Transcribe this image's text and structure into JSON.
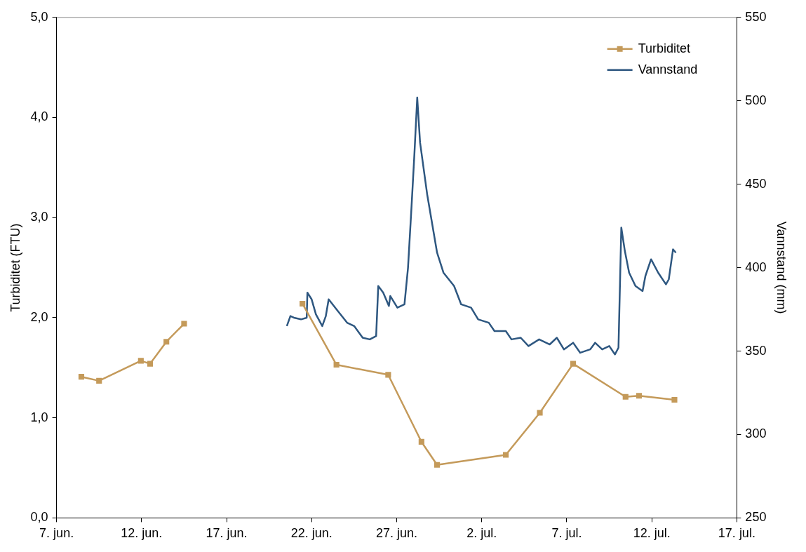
{
  "chart_data": {
    "type": "line",
    "ylabel": "Turbiditet (FTU)",
    "y2label": "Vannstand (mm)",
    "legend": "top right",
    "line_style": "solid",
    "xlim": [
      "--06-07",
      "--07-17"
    ],
    "xticks": [
      {
        "value": "--06-07",
        "label": "7. jun."
      },
      {
        "value": "--06-12",
        "label": "12. jun."
      },
      {
        "value": "--06-17",
        "label": "17. jun."
      },
      {
        "value": "--06-22",
        "label": "22. jun."
      },
      {
        "value": "--06-27",
        "label": "27. jun."
      },
      {
        "value": "--07-02",
        "label": "2. jul."
      },
      {
        "value": "--07-07",
        "label": "7. jul."
      },
      {
        "value": "--07-12",
        "label": "12. jul."
      },
      {
        "value": "--07-17",
        "label": "17. jul."
      }
    ],
    "ylim": [
      0,
      5
    ],
    "yticks": [
      {
        "value": 0,
        "label": "0,0"
      },
      {
        "value": 1,
        "label": "1,0"
      },
      {
        "value": 2,
        "label": "2,0"
      },
      {
        "value": 3,
        "label": "3,0"
      },
      {
        "value": 4,
        "label": "4,0"
      },
      {
        "value": 5,
        "label": "5,0"
      }
    ],
    "y2lim": [
      250,
      550
    ],
    "y2ticks": [
      250,
      300,
      350,
      400,
      450,
      500,
      550
    ],
    "series": [
      {
        "name": "Turbiditet",
        "color": "#c49a5a",
        "marker": "square",
        "x": [
          "--06-08T11:00",
          "--06-09T12:00",
          "--06-11T23:00",
          "--06-12T12:00",
          "--06-13T11:00",
          "--06-14T12:00",
          "--06-18T00:00",
          "--06-21T11:00",
          "--06-23T11:00",
          "--06-26T12:00",
          "--06-28T11:00",
          "--06-29T09:00",
          "--07-03T10:00",
          "--07-05T10:00",
          "--07-07T09:00",
          "--07-10T11:00",
          "--07-11T06:00",
          "--07-13T08:00"
        ],
        "values": [
          1.41,
          1.37,
          1.57,
          1.54,
          1.76,
          1.94,
          null,
          2.14,
          1.53,
          1.43,
          0.76,
          0.53,
          0.63,
          1.05,
          1.54,
          1.21,
          1.22,
          1.18
        ]
      },
      {
        "name": "Vannstand",
        "color": "#2e5780",
        "marker": "none",
        "axis": "y2",
        "x": [
          "--06-20T13:00",
          "--06-20T18:00",
          "--06-20T23:00",
          "--06-21T09:00",
          "--06-21T17:00",
          "--06-21T18:00",
          "--06-22T00:00",
          "--06-22T06:00",
          "--06-22T15:00",
          "--06-22T20:00",
          "--06-23T00:00",
          "--06-23T13:00",
          "--06-24T02:00",
          "--06-24T12:00",
          "--06-25T00:00",
          "--06-25T10:00",
          "--06-25T19:00",
          "--06-25T22:00",
          "--06-26T05:00",
          "--06-26T13:00",
          "--06-26T15:00",
          "--06-27T01:00",
          "--06-27T11:00",
          "--06-27T16:00",
          "--06-27T21:00",
          "--06-28T01:00",
          "--06-28T05:00",
          "--06-28T09:00",
          "--06-28T19:00",
          "--06-29T09:00",
          "--06-29T18:00",
          "--06-30T09:00",
          "--06-30T19:00",
          "--07-01T09:00",
          "--07-01T19:00",
          "--07-02T10:00",
          "--07-02T18:00",
          "--07-03T10:00",
          "--07-03T18:00",
          "--07-04T07:00",
          "--07-04T18:00",
          "--07-05T09:00",
          "--07-06T00:00",
          "--07-06T10:00",
          "--07-06T20:00",
          "--07-07T09:00",
          "--07-07T19:00",
          "--07-08T09:00",
          "--07-08T16:00",
          "--07-09T02:00",
          "--07-09T12:00",
          "--07-09T20:00",
          "--07-10T01:00",
          "--07-10T05:00",
          "--07-10T10:00",
          "--07-10T16:00",
          "--07-11T01:00",
          "--07-11T11:00",
          "--07-11T15:00",
          "--07-11T23:00",
          "--07-12T09:00",
          "--07-12T20:00",
          "--07-13T00:00",
          "--07-13T06:00",
          "--07-13T10:00"
        ],
        "values": [
          365,
          371,
          370,
          369,
          370,
          385,
          381,
          372,
          365,
          371,
          381,
          374,
          367,
          365,
          358,
          357,
          359,
          389,
          385,
          377,
          383,
          376,
          378,
          400,
          437,
          468,
          502,
          475,
          444,
          409,
          397,
          389,
          378,
          376,
          369,
          367,
          362,
          362,
          357,
          358,
          353,
          357,
          354,
          358,
          351,
          355,
          349,
          351,
          355,
          351,
          353,
          348,
          352,
          424,
          410,
          397,
          389,
          386,
          395,
          405,
          397,
          390,
          393,
          411,
          409
        ]
      }
    ]
  }
}
